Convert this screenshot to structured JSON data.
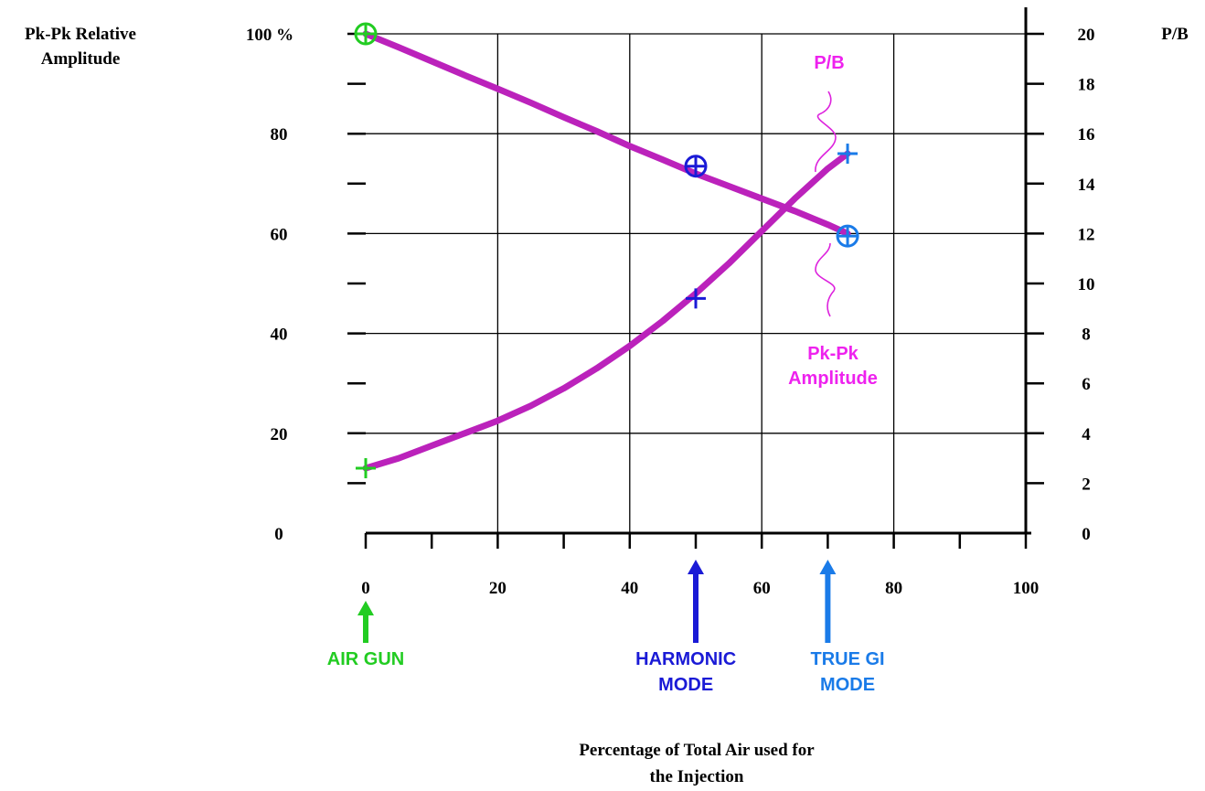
{
  "chart_data": {
    "type": "line",
    "left_axis_title_line1": "Pk-Pk Relative",
    "left_axis_title_line2": "Amplitude",
    "right_axis_title": "P/B",
    "xlabel_line1": "Percentage of Total Air used for",
    "xlabel_line2": "the Injection",
    "xlim": [
      0,
      100
    ],
    "ylim_left": [
      0,
      100
    ],
    "ylim_right": [
      0,
      20
    ],
    "x_ticks": [
      "0",
      "20",
      "40",
      "60",
      "80",
      "100"
    ],
    "y_left_ticks": [
      "0",
      "20",
      "40",
      "60",
      "80",
      "100 %"
    ],
    "y_right_ticks": [
      "0",
      "2",
      "4",
      "6",
      "8",
      "10",
      "12",
      "14",
      "16",
      "18",
      "20"
    ],
    "grid": true,
    "series": [
      {
        "name": "P/B",
        "color": "#bb22bb",
        "x": [
          0,
          5,
          10,
          15,
          20,
          25,
          30,
          35,
          40,
          45,
          50,
          55,
          60,
          65,
          70,
          73
        ],
        "y_right": [
          2.6,
          3.0,
          3.5,
          4.0,
          4.5,
          5.1,
          5.8,
          6.6,
          7.5,
          8.5,
          9.6,
          10.8,
          12.1,
          13.4,
          14.6,
          15.2
        ]
      },
      {
        "name": "Pk-Pk Amplitude",
        "color": "#bb22bb",
        "x": [
          0,
          5,
          10,
          15,
          20,
          25,
          30,
          35,
          40,
          45,
          50,
          55,
          60,
          65,
          70,
          73
        ],
        "y_left": [
          100,
          97.3,
          94.5,
          91.7,
          89,
          86.2,
          83.3,
          80.5,
          77.5,
          74.8,
          72,
          69.5,
          67,
          64.5,
          61.8,
          60
        ]
      }
    ],
    "markers": [
      {
        "shape": "circle-plus",
        "x": 0,
        "y_left": 100,
        "color": "#22cc22"
      },
      {
        "shape": "circle-plus",
        "x": 50,
        "y_left": 73.5,
        "color": "#1a1ad6"
      },
      {
        "shape": "circle-plus",
        "x": 73,
        "y_left": 59.5,
        "color": "#1a7be8"
      },
      {
        "shape": "plus",
        "x": 0,
        "y_right": 2.6,
        "color": "#22cc22"
      },
      {
        "shape": "plus",
        "x": 50,
        "y_right": 9.4,
        "color": "#1a1ad6"
      },
      {
        "shape": "plus",
        "x": 73,
        "y_right": 15.2,
        "color": "#1a7be8"
      }
    ],
    "curve_labels": [
      {
        "lines": [
          "P/B"
        ],
        "color": "#ee22ee"
      },
      {
        "lines": [
          "Pk-Pk",
          "Amplitude"
        ],
        "color": "#ee22ee"
      }
    ],
    "annotations": [
      {
        "lines": [
          "AIR GUN"
        ],
        "x": 0,
        "color": "#22cc22"
      },
      {
        "lines": [
          "HARMONIC",
          "MODE"
        ],
        "x": 50,
        "color": "#1a1ad6"
      },
      {
        "lines": [
          "TRUE GI",
          "MODE"
        ],
        "x": 70,
        "color": "#1a7be8"
      }
    ]
  }
}
